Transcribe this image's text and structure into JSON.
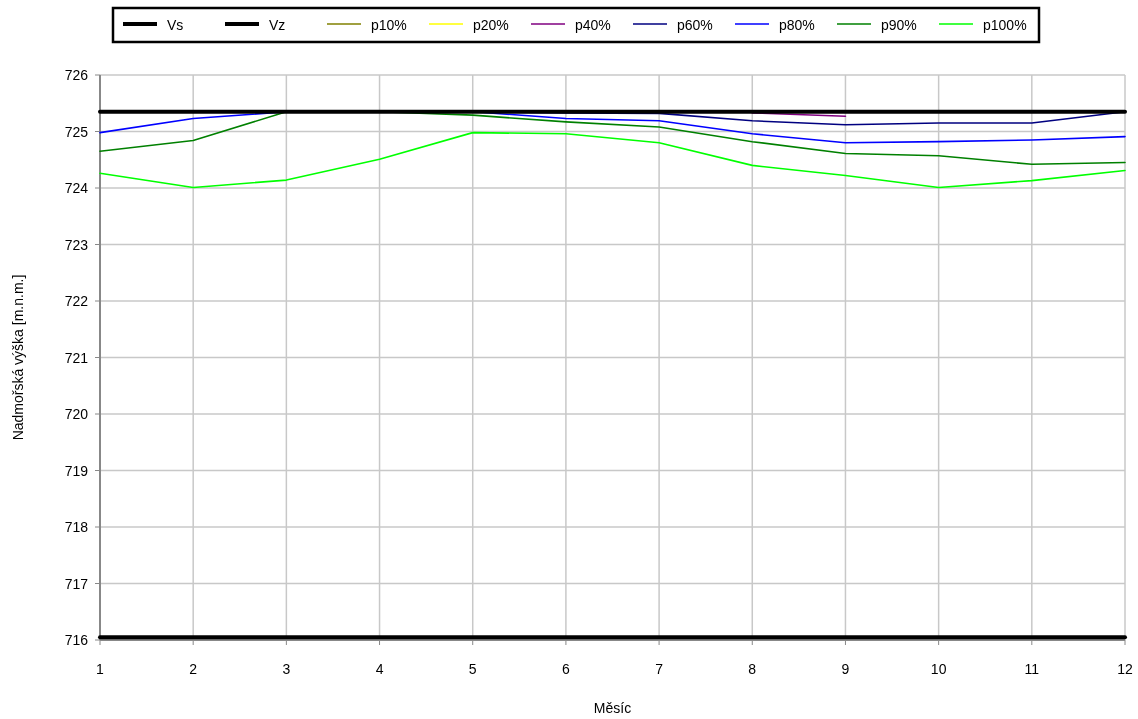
{
  "chart_data": {
    "type": "line",
    "xlabel": "Měsíc",
    "ylabel": "Nadmořská výška [m.n.m.]",
    "x": [
      1,
      2,
      3,
      4,
      5,
      6,
      7,
      8,
      9,
      10,
      11,
      12
    ],
    "xlim": [
      1,
      12
    ],
    "xticks": [
      1,
      2,
      3,
      4,
      5,
      6,
      7,
      8,
      9,
      10,
      11,
      12
    ],
    "ylim": [
      716,
      726
    ],
    "yticks": [
      716,
      717,
      718,
      719,
      720,
      721,
      722,
      723,
      724,
      725,
      726
    ],
    "grid": true,
    "legend": "top",
    "marker": "none",
    "line_style": "solid",
    "series": [
      {
        "name": "Vs",
        "color": "#000000",
        "values": [
          725.35,
          725.35,
          725.35,
          725.35,
          725.35,
          725.35,
          725.35,
          725.35,
          725.35,
          725.35,
          725.35,
          725.35
        ]
      },
      {
        "name": "Vz",
        "color": "#000000",
        "values": [
          716.05,
          716.05,
          716.05,
          716.05,
          716.05,
          716.05,
          716.05,
          716.05,
          716.05,
          716.05,
          716.05,
          716.05
        ]
      },
      {
        "name": "p10%",
        "color": "#808000",
        "values": [
          null,
          null,
          null,
          null,
          null,
          null,
          null,
          null,
          null,
          null,
          null,
          null
        ]
      },
      {
        "name": "p20%",
        "color": "#ffff00",
        "values": [
          null,
          null,
          null,
          null,
          null,
          null,
          null,
          null,
          null,
          null,
          null,
          null
        ]
      },
      {
        "name": "p40%",
        "color": "#800080",
        "values": [
          null,
          null,
          null,
          null,
          null,
          null,
          null,
          725.33,
          725.27,
          null,
          null,
          null
        ]
      },
      {
        "name": "p60%",
        "color": "#000080",
        "values": [
          null,
          null,
          null,
          null,
          725.35,
          725.33,
          725.32,
          725.19,
          725.12,
          725.15,
          725.15,
          725.35
        ]
      },
      {
        "name": "p80%",
        "color": "#0000ff",
        "values": [
          724.98,
          725.23,
          725.35,
          725.35,
          725.35,
          725.23,
          725.19,
          724.96,
          724.8,
          724.82,
          724.85,
          724.91
        ]
      },
      {
        "name": "p90%",
        "color": "#008000",
        "values": [
          724.65,
          724.84,
          725.35,
          725.35,
          725.29,
          725.17,
          725.08,
          724.82,
          724.61,
          724.57,
          724.42,
          724.45
        ]
      },
      {
        "name": "p100%",
        "color": "#00ff00",
        "values": [
          724.26,
          724.01,
          724.14,
          724.51,
          724.98,
          724.96,
          724.8,
          724.4,
          724.22,
          724.01,
          724.13,
          724.31
        ]
      }
    ]
  }
}
